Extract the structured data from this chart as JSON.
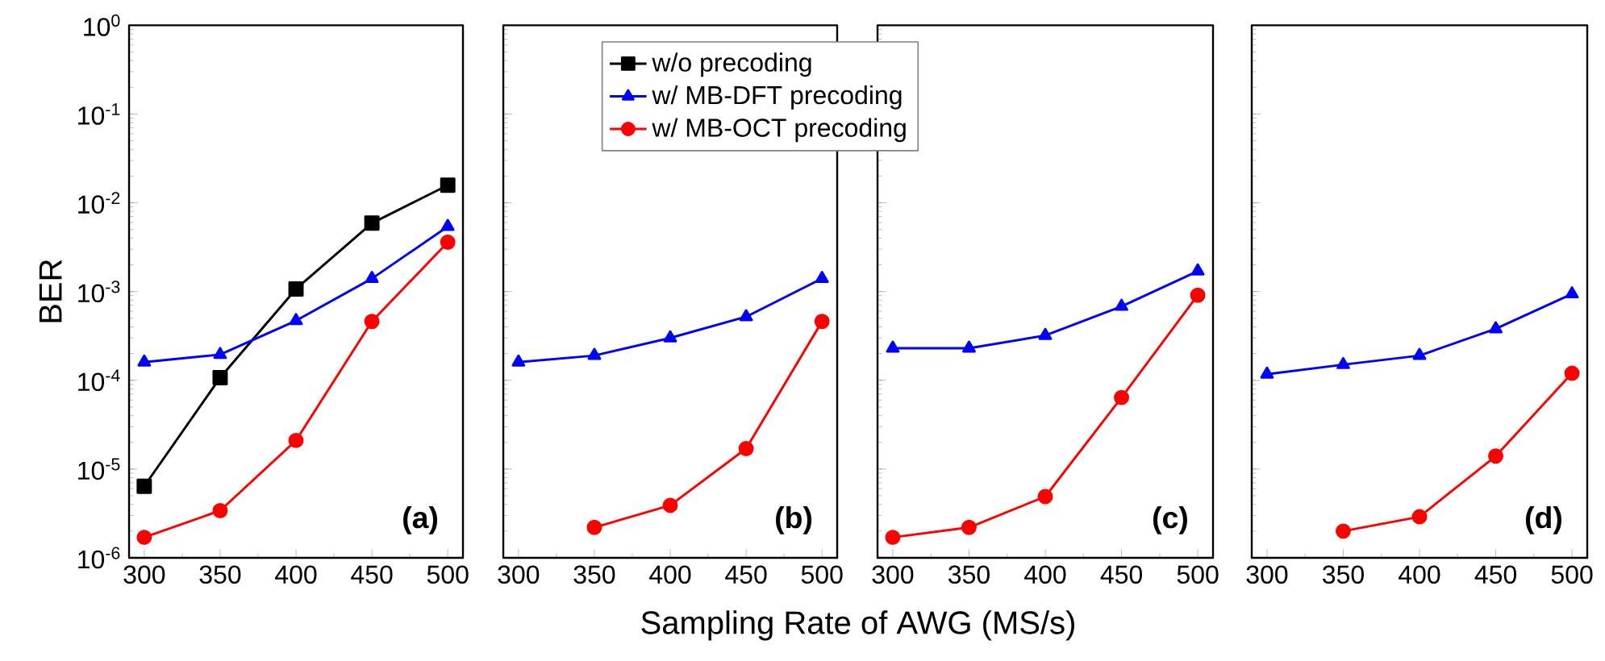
{
  "chart_data": [
    {
      "type": "line",
      "ylabel": "BER",
      "xlabel": "Sampling Rate of AWG (MS/s)",
      "log": true,
      "legend": "top right",
      "x": [
        300,
        350,
        400,
        450,
        500
      ],
      "xlim": [
        290,
        510
      ],
      "xticks": [
        300,
        350,
        400,
        450,
        500
      ],
      "ylim": [
        1e-06,
        1
      ],
      "yticks": [
        {
          "value": 1e-06,
          "label": "10$^{-6}$"
        },
        {
          "value": 1e-05,
          "label": "10$^{-5}$"
        },
        {
          "value": 0.0001,
          "label": "10$^{-4}$"
        },
        {
          "value": 0.001,
          "label": "10$^{-3}$"
        },
        {
          "value": 0.01,
          "label": "10$^{-2}$"
        },
        {
          "value": 0.1,
          "label": "10$^{-1}$"
        },
        {
          "value": 1,
          "label": "10$^{0}$"
        }
      ],
      "series": [
        {
          "name": "w/o precoding",
          "color": "#000000",
          "marker": "square",
          "values": [
            6.4e-06,
            0.000107,
            0.00107,
            0.0059,
            0.0158
          ]
        },
        {
          "name": "w/ MB-DFT precoding",
          "color": "#0000ff",
          "marker": "triangle",
          "values": [
            0.00016,
            0.000195,
            0.00047,
            0.0014,
            0.0054
          ]
        },
        {
          "name": "w/ MB-OCT precoding",
          "color": "#ff0000",
          "marker": "circle",
          "values": [
            1.7e-06,
            3.4e-06,
            2.1e-05,
            0.00046,
            0.0036
          ]
        }
      ],
      "annotations": [
        "(a)"
      ]
    },
    {
      "type": "line",
      "log": true,
      "tick_labels": "x",
      "x": [
        300,
        350,
        400,
        450,
        500
      ],
      "xlim": [
        290,
        510
      ],
      "xticks": [
        300,
        350,
        400,
        450,
        500
      ],
      "ylim": [
        1e-06,
        1
      ],
      "yticks": [
        {
          "value": 1e-06,
          "label": null
        },
        {
          "value": 1e-05,
          "label": null
        },
        {
          "value": 0.0001,
          "label": null
        },
        {
          "value": 0.001,
          "label": null
        },
        {
          "value": 0.01,
          "label": null
        },
        {
          "value": 0.1,
          "label": null
        },
        {
          "value": 1,
          "label": null
        }
      ],
      "series": [
        {
          "color": "#0000ff",
          "marker": "triangle",
          "values": [
            0.00016,
            0.00019,
            0.0003,
            0.00052,
            0.0014
          ]
        },
        {
          "color": "#ff0000",
          "marker": "circle",
          "values": [
            null,
            2.2e-06,
            3.9e-06,
            1.7e-05,
            0.00046
          ]
        }
      ],
      "annotations": [
        "(b)"
      ]
    },
    {
      "type": "line",
      "log": true,
      "tick_labels": "x",
      "x": [
        300,
        350,
        400,
        450,
        500
      ],
      "xlim": [
        290,
        510
      ],
      "xticks": [
        300,
        350,
        400,
        450,
        500
      ],
      "ylim": [
        1e-06,
        1
      ],
      "yticks": [
        {
          "value": 1e-06,
          "label": null
        },
        {
          "value": 1e-05,
          "label": null
        },
        {
          "value": 0.0001,
          "label": null
        },
        {
          "value": 0.001,
          "label": null
        },
        {
          "value": 0.01,
          "label": null
        },
        {
          "value": 0.1,
          "label": null
        },
        {
          "value": 1,
          "label": null
        }
      ],
      "series": [
        {
          "color": "#0000ff",
          "marker": "triangle",
          "values": [
            0.00023,
            0.00023,
            0.00032,
            0.00068,
            0.0017
          ]
        },
        {
          "color": "#ff0000",
          "marker": "circle",
          "values": [
            1.7e-06,
            2.2e-06,
            4.9e-06,
            6.4e-05,
            0.00091
          ]
        }
      ],
      "annotations": [
        "(c)"
      ]
    },
    {
      "type": "line",
      "log": true,
      "tick_labels": "x",
      "x": [
        300,
        350,
        400,
        450,
        500
      ],
      "xlim": [
        290,
        510
      ],
      "xticks": [
        300,
        350,
        400,
        450,
        500
      ],
      "ylim": [
        1e-06,
        1
      ],
      "yticks": [
        {
          "value": 1e-06,
          "label": null
        },
        {
          "value": 1e-05,
          "label": null
        },
        {
          "value": 0.0001,
          "label": null
        },
        {
          "value": 0.001,
          "label": null
        },
        {
          "value": 0.01,
          "label": null
        },
        {
          "value": 0.1,
          "label": null
        },
        {
          "value": 1,
          "label": null
        }
      ],
      "series": [
        {
          "color": "#0000ff",
          "marker": "triangle",
          "values": [
            0.000117,
            0.00015,
            0.00019,
            0.00038,
            0.00094
          ]
        },
        {
          "color": "#ff0000",
          "marker": "circle",
          "values": [
            null,
            2e-06,
            2.9e-06,
            1.4e-05,
            0.00012
          ]
        }
      ],
      "annotations": [
        "(d)"
      ]
    }
  ]
}
